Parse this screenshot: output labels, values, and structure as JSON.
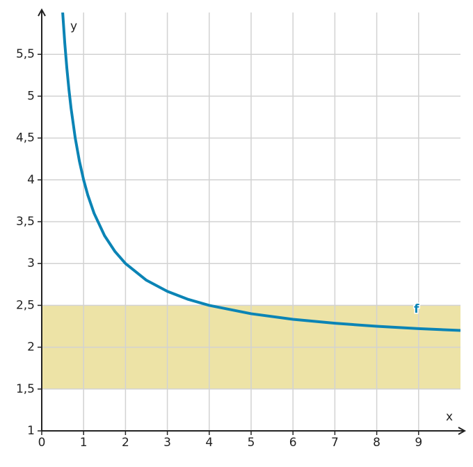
{
  "chart_data": {
    "type": "line",
    "xlabel": "x",
    "ylabel": "y",
    "x": [
      0.5,
      0.55,
      0.6,
      0.65,
      0.7,
      0.8,
      0.9,
      1,
      1.1,
      1.25,
      1.5,
      1.75,
      2,
      2.5,
      3,
      3.5,
      4,
      5,
      6,
      7,
      8,
      9,
      10
    ],
    "series": [
      {
        "name": "f",
        "color": "#0b84b5",
        "values": [
          6,
          5.636,
          5.333,
          5.077,
          4.857,
          4.5,
          4.222,
          4,
          3.818,
          3.6,
          3.333,
          3.143,
          3,
          2.8,
          2.667,
          2.571,
          2.5,
          2.4,
          2.333,
          2.286,
          2.25,
          2.222,
          2.2
        ]
      }
    ],
    "band": [
      1.5,
      2.5
    ],
    "band_color": "#ede3a6",
    "xlim": [
      0,
      10
    ],
    "ylim": [
      1,
      6
    ],
    "xticks": [
      0,
      1,
      2,
      3,
      4,
      5,
      6,
      7,
      8,
      9
    ],
    "yticks": [
      1,
      {
        "value": 1.5,
        "label": "1,5"
      },
      2,
      {
        "value": 2.5,
        "label": "2,5"
      },
      3,
      {
        "value": 3.5,
        "label": "3,5"
      },
      4,
      {
        "value": 4.5,
        "label": "4,5"
      },
      5,
      {
        "value": 5.5,
        "label": "5,5"
      }
    ],
    "grid": true
  }
}
